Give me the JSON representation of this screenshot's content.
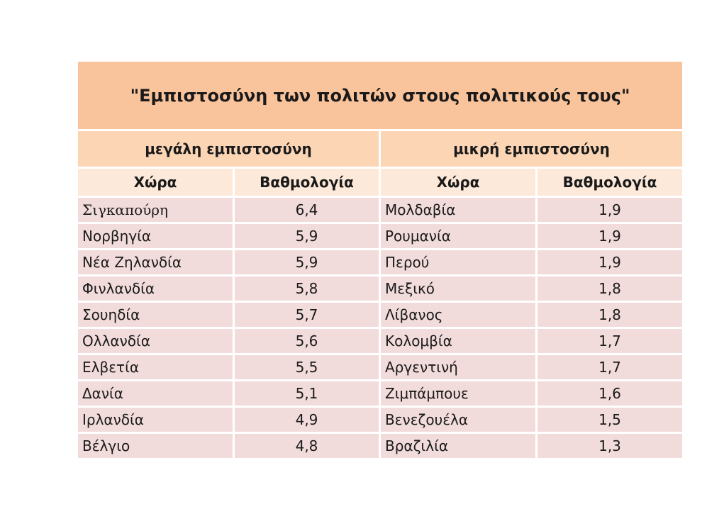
{
  "title": "\"Εμπιστοσύνη των πολιτών στους πολιτικούς τους\"",
  "groups": {
    "high": "μεγάλη εμπιστοσύνη",
    "low": "μικρή εμπιστοσύνη"
  },
  "columns": {
    "country": "Χώρα",
    "score": "Βαθμολογία"
  },
  "high_trust": [
    {
      "country": "Σιγκαπούρη",
      "score": "6,4"
    },
    {
      "country": "Νορβηγία",
      "score": "5,9"
    },
    {
      "country": "Νέα Ζηλανδία",
      "score": "5,9"
    },
    {
      "country": "Φινλανδία",
      "score": "5,8"
    },
    {
      "country": "Σουηδία",
      "score": "5,7"
    },
    {
      "country": "Ολλανδία",
      "score": "5,6"
    },
    {
      "country": "Ελβετία",
      "score": "5,5"
    },
    {
      "country": "Δανία",
      "score": "5,1"
    },
    {
      "country": "Ιρλανδία",
      "score": "4,9"
    },
    {
      "country": "Βέλγιο",
      "score": "4,8"
    }
  ],
  "low_trust": [
    {
      "country": "Μολδαβία",
      "score": "1,9"
    },
    {
      "country": "Ρουμανία",
      "score": "1,9"
    },
    {
      "country": "Περού",
      "score": "1,9"
    },
    {
      "country": "Μεξικό",
      "score": "1,8"
    },
    {
      "country": "Λίβανος",
      "score": "1,8"
    },
    {
      "country": "Κολομβία",
      "score": "1,7"
    },
    {
      "country": "Αργεντινή",
      "score": "1,7"
    },
    {
      "country": "Ζιμπάμπουε",
      "score": "1,6"
    },
    {
      "country": "Βενεζουέλα",
      "score": "1,5"
    },
    {
      "country": "Βραζιλία",
      "score": "1,3"
    }
  ],
  "colors": {
    "title_bg": "#f9c39c",
    "group_bg": "#fcd5b5",
    "header_bg": "#fde9d9",
    "row_bg": "#f2dcdb"
  }
}
